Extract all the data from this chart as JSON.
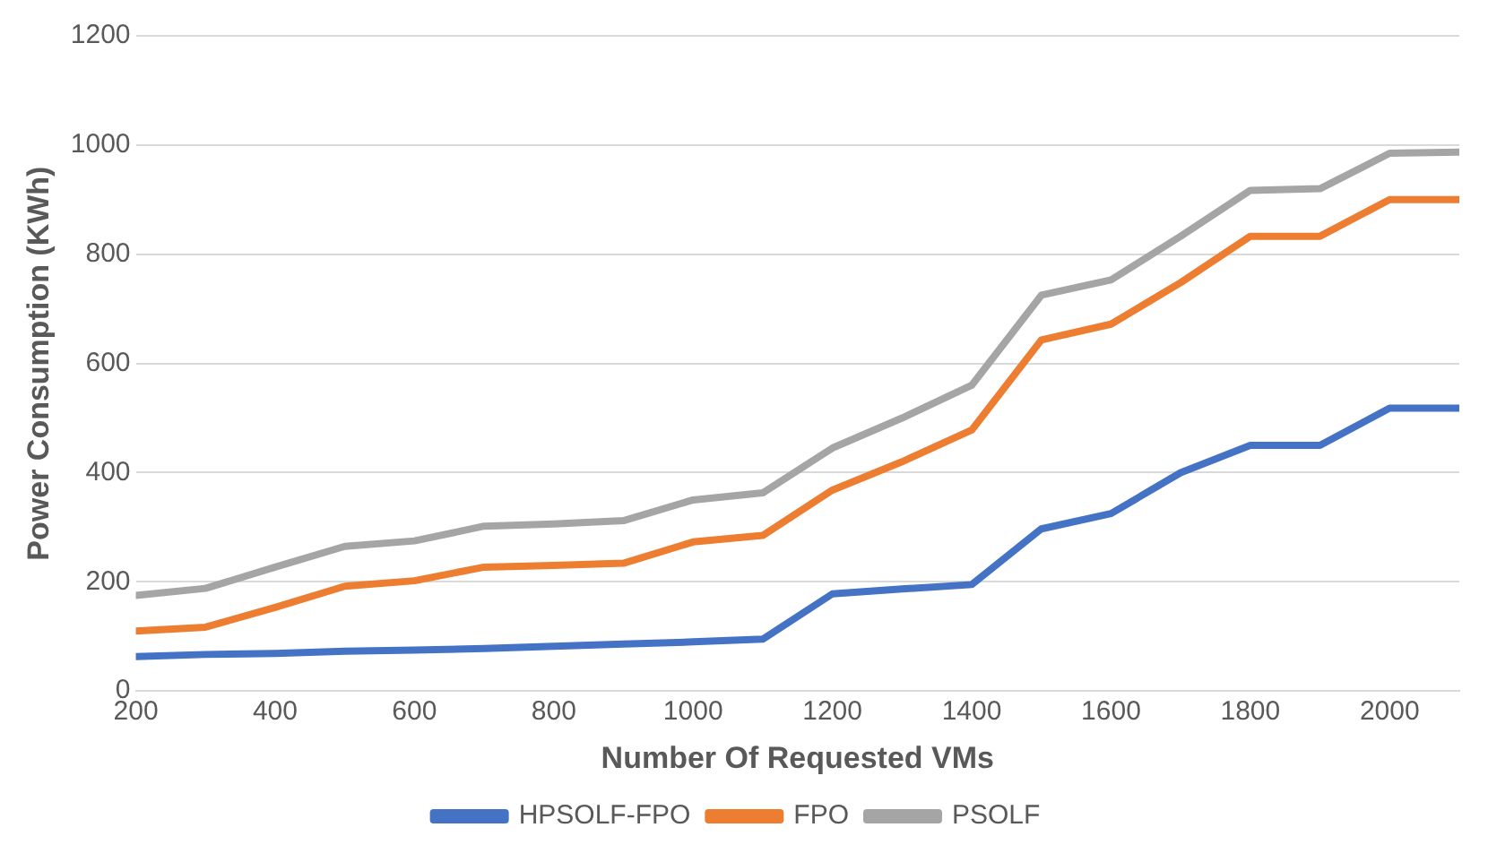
{
  "chart_data": {
    "type": "line",
    "xlabel": "Number Of Requested VMs",
    "ylabel": "Power Consumption (KWh)",
    "x": [
      200,
      300,
      400,
      500,
      600,
      700,
      800,
      900,
      1000,
      1100,
      1200,
      1300,
      1400,
      1500,
      1600,
      1700,
      1800,
      1900,
      2000,
      2100
    ],
    "series": [
      {
        "name": "HPSOLF-FPO",
        "color": "#4472c4",
        "values": [
          63,
          67,
          69,
          73,
          75,
          78,
          82,
          86,
          90,
          95,
          178,
          187,
          195,
          297,
          325,
          400,
          450,
          450,
          518,
          518
        ]
      },
      {
        "name": "FPO",
        "color": "#ed7d31",
        "values": [
          110,
          117,
          153,
          192,
          202,
          227,
          230,
          234,
          273,
          285,
          368,
          420,
          478,
          643,
          672,
          748,
          833,
          833,
          900,
          900
        ]
      },
      {
        "name": "PSOLF",
        "color": "#a5a5a5",
        "values": [
          175,
          188,
          227,
          265,
          275,
          302,
          306,
          312,
          350,
          363,
          445,
          500,
          560,
          725,
          753,
          833,
          917,
          920,
          985,
          987
        ]
      }
    ],
    "xlim": [
      200,
      2100
    ],
    "xticks": [
      200,
      400,
      600,
      800,
      1000,
      1200,
      1400,
      1600,
      1800,
      2000
    ],
    "ylim": [
      0,
      1200
    ],
    "yticks": [
      0,
      200,
      400,
      600,
      800,
      1000,
      1200
    ],
    "grid": "y",
    "legend": "bottom",
    "marker": "none",
    "line_style": "solid"
  }
}
